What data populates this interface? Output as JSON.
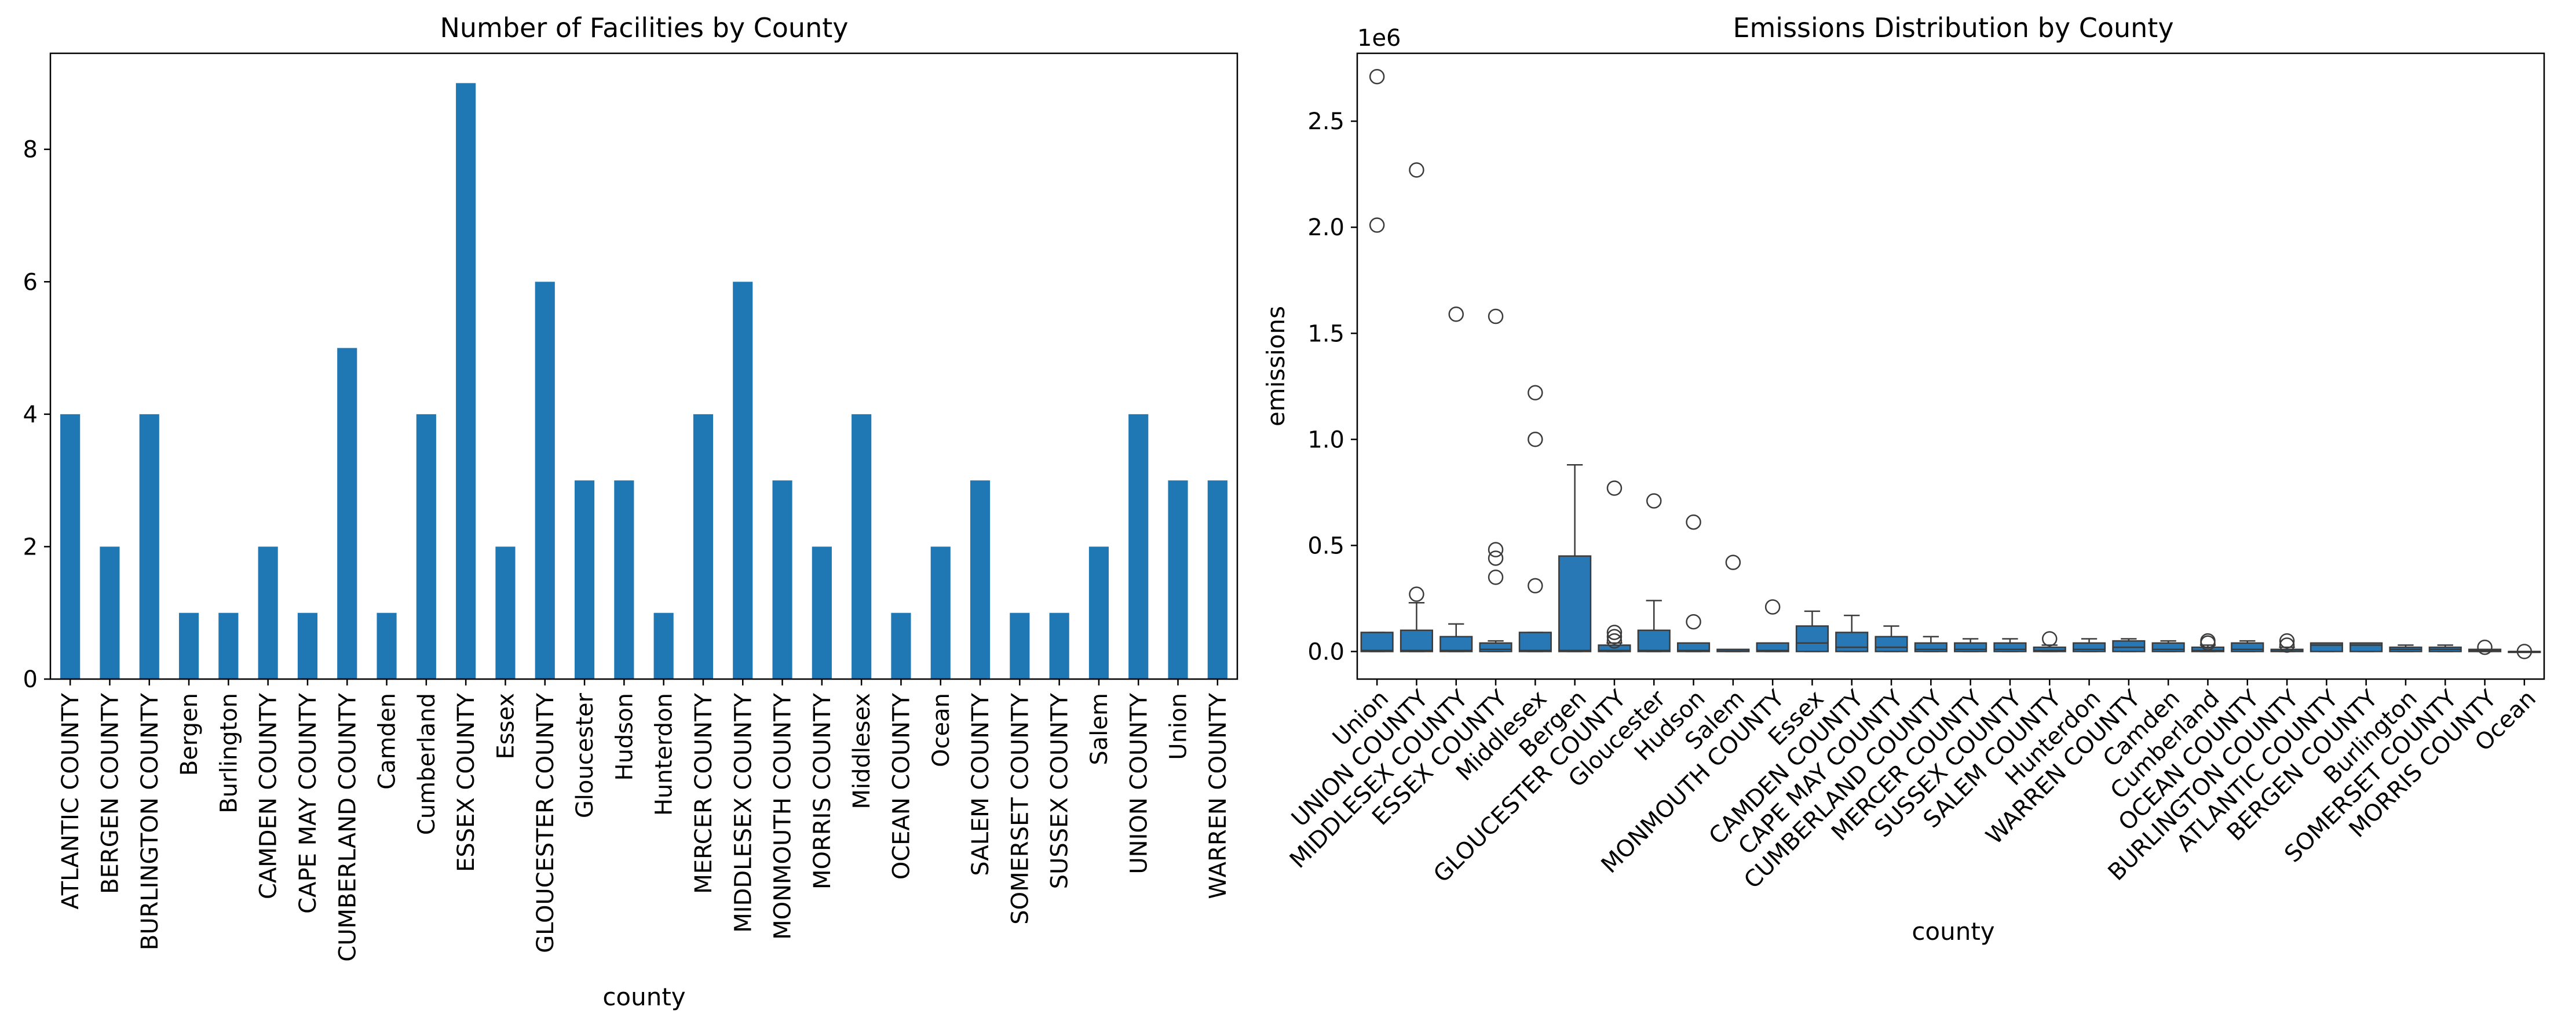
{
  "chart_data": [
    {
      "type": "bar",
      "title": "Number of Facilities by County",
      "xlabel": "county",
      "ylabel": "",
      "ylim": [
        0,
        9.45
      ],
      "yticks": [
        0,
        2,
        4,
        6,
        8
      ],
      "grid": false,
      "color": "#1f77b4",
      "categories": [
        "ATLANTIC COUNTY",
        "BERGEN COUNTY",
        "BURLINGTON COUNTY",
        "Bergen",
        "Burlington",
        "CAMDEN COUNTY",
        "CAPE MAY COUNTY",
        "CUMBERLAND COUNTY",
        "Camden",
        "Cumberland",
        "ESSEX COUNTY",
        "Essex",
        "GLOUCESTER COUNTY",
        "Gloucester",
        "Hudson",
        "Hunterdon",
        "MERCER COUNTY",
        "MIDDLESEX COUNTY",
        "MONMOUTH COUNTY",
        "MORRIS COUNTY",
        "Middlesex",
        "OCEAN COUNTY",
        "Ocean",
        "SALEM COUNTY",
        "SOMERSET COUNTY",
        "SUSSEX COUNTY",
        "Salem",
        "UNION COUNTY",
        "Union",
        "WARREN COUNTY"
      ],
      "values": [
        4,
        2,
        4,
        1,
        1,
        2,
        1,
        5,
        1,
        4,
        9,
        2,
        6,
        3,
        3,
        1,
        4,
        6,
        3,
        2,
        4,
        1,
        2,
        3,
        1,
        1,
        2,
        4,
        3,
        3
      ]
    },
    {
      "type": "box",
      "title": "Emissions Distribution by County",
      "xlabel": "county",
      "ylabel": "emissions",
      "y_offset_label": "1e6",
      "ylim": [
        -0.13,
        2.82
      ],
      "yticks": [
        "0.0",
        "0.5",
        "1.0",
        "1.5",
        "2.0",
        "2.5"
      ],
      "grid": false,
      "color": "#2878b5",
      "categories": [
        "Union",
        "UNION COUNTY",
        "MIDDLESEX COUNTY",
        "ESSEX COUNTY",
        "Middlesex",
        "Bergen",
        "GLOUCESTER COUNTY",
        "Gloucester",
        "Hudson",
        "Salem",
        "MONMOUTH COUNTY",
        "Essex",
        "CAMDEN COUNTY",
        "CAPE MAY COUNTY",
        "CUMBERLAND COUNTY",
        "MERCER COUNTY",
        "SUSSEX COUNTY",
        "SALEM COUNTY",
        "Hunterdon",
        "WARREN COUNTY",
        "Camden",
        "Cumberland",
        "OCEAN COUNTY",
        "BURLINGTON COUNTY",
        "ATLANTIC COUNTY",
        "BERGEN COUNTY",
        "Burlington",
        "SOMERSET COUNTY",
        "MORRIS COUNTY",
        "Ocean"
      ],
      "boxes": [
        {
          "q1": 0.0,
          "median": 0.005,
          "q3": 0.09,
          "whislo": 0.0,
          "whishi": 0.09,
          "fliers": [
            2.71,
            2.01
          ]
        },
        {
          "q1": 0.0,
          "median": 0.005,
          "q3": 0.1,
          "whislo": 0.0,
          "whishi": 0.23,
          "fliers": [
            2.27,
            0.27
          ]
        },
        {
          "q1": 0.0,
          "median": 0.005,
          "q3": 0.07,
          "whislo": 0.0,
          "whishi": 0.13,
          "fliers": [
            1.59
          ]
        },
        {
          "q1": 0.0,
          "median": 0.01,
          "q3": 0.04,
          "whislo": 0.0,
          "whishi": 0.05,
          "fliers": [
            1.58,
            0.48,
            0.44,
            0.35
          ]
        },
        {
          "q1": 0.0,
          "median": 0.005,
          "q3": 0.09,
          "whislo": 0.0,
          "whishi": 0.09,
          "fliers": [
            1.22,
            1.0,
            0.31
          ]
        },
        {
          "q1": 0.0,
          "median": 0.005,
          "q3": 0.45,
          "whislo": 0.0,
          "whishi": 0.88,
          "fliers": []
        },
        {
          "q1": 0.0,
          "median": 0.005,
          "q3": 0.03,
          "whislo": 0.0,
          "whishi": 0.04,
          "fliers": [
            0.77,
            0.09,
            0.07,
            0.05
          ]
        },
        {
          "q1": 0.0,
          "median": 0.005,
          "q3": 0.1,
          "whislo": 0.0,
          "whishi": 0.24,
          "fliers": [
            0.71
          ]
        },
        {
          "q1": 0.0,
          "median": 0.005,
          "q3": 0.04,
          "whislo": 0.0,
          "whishi": 0.04,
          "fliers": [
            0.61,
            0.14
          ]
        },
        {
          "q1": 0.0,
          "median": 0.002,
          "q3": 0.01,
          "whislo": 0.0,
          "whishi": 0.01,
          "fliers": [
            0.42
          ]
        },
        {
          "q1": 0.0,
          "median": 0.005,
          "q3": 0.04,
          "whislo": 0.0,
          "whishi": 0.04,
          "fliers": [
            0.21
          ]
        },
        {
          "q1": 0.0,
          "median": 0.04,
          "q3": 0.12,
          "whislo": 0.0,
          "whishi": 0.19,
          "fliers": []
        },
        {
          "q1": 0.0,
          "median": 0.02,
          "q3": 0.09,
          "whislo": 0.0,
          "whishi": 0.17,
          "fliers": []
        },
        {
          "q1": 0.0,
          "median": 0.02,
          "q3": 0.07,
          "whislo": 0.0,
          "whishi": 0.12,
          "fliers": []
        },
        {
          "q1": 0.0,
          "median": 0.01,
          "q3": 0.04,
          "whislo": 0.0,
          "whishi": 0.07,
          "fliers": []
        },
        {
          "q1": 0.0,
          "median": 0.01,
          "q3": 0.04,
          "whislo": 0.0,
          "whishi": 0.06,
          "fliers": []
        },
        {
          "q1": 0.0,
          "median": 0.01,
          "q3": 0.04,
          "whislo": 0.0,
          "whishi": 0.06,
          "fliers": []
        },
        {
          "q1": 0.0,
          "median": 0.005,
          "q3": 0.02,
          "whislo": 0.0,
          "whishi": 0.03,
          "fliers": [
            0.06
          ]
        },
        {
          "q1": 0.0,
          "median": 0.01,
          "q3": 0.04,
          "whislo": 0.0,
          "whishi": 0.06,
          "fliers": []
        },
        {
          "q1": 0.0,
          "median": 0.02,
          "q3": 0.05,
          "whislo": 0.0,
          "whishi": 0.06,
          "fliers": []
        },
        {
          "q1": 0.0,
          "median": 0.01,
          "q3": 0.04,
          "whislo": 0.0,
          "whishi": 0.05,
          "fliers": []
        },
        {
          "q1": 0.0,
          "median": 0.005,
          "q3": 0.02,
          "whislo": 0.0,
          "whishi": 0.03,
          "fliers": [
            0.05,
            0.04
          ]
        },
        {
          "q1": 0.0,
          "median": 0.01,
          "q3": 0.04,
          "whislo": 0.0,
          "whishi": 0.05,
          "fliers": []
        },
        {
          "q1": 0.0,
          "median": 0.002,
          "q3": 0.01,
          "whislo": 0.0,
          "whishi": 0.02,
          "fliers": [
            0.05,
            0.03
          ]
        },
        {
          "q1": 0.0,
          "median": 0.03,
          "q3": 0.04,
          "whislo": 0.0,
          "whishi": 0.04,
          "fliers": []
        },
        {
          "q1": 0.0,
          "median": 0.03,
          "q3": 0.04,
          "whislo": 0.0,
          "whishi": 0.04,
          "fliers": []
        },
        {
          "q1": 0.0,
          "median": 0.01,
          "q3": 0.02,
          "whislo": 0.0,
          "whishi": 0.03,
          "fliers": []
        },
        {
          "q1": 0.0,
          "median": 0.01,
          "q3": 0.02,
          "whislo": 0.0,
          "whishi": 0.03,
          "fliers": []
        },
        {
          "q1": 0.0,
          "median": 0.005,
          "q3": 0.01,
          "whislo": 0.0,
          "whishi": 0.01,
          "fliers": [
            0.02
          ]
        },
        {
          "q1": 0.0,
          "median": 0.0,
          "q3": 0.0,
          "whislo": 0.0,
          "whishi": 0.0,
          "fliers": [
            0.0
          ]
        }
      ]
    }
  ]
}
